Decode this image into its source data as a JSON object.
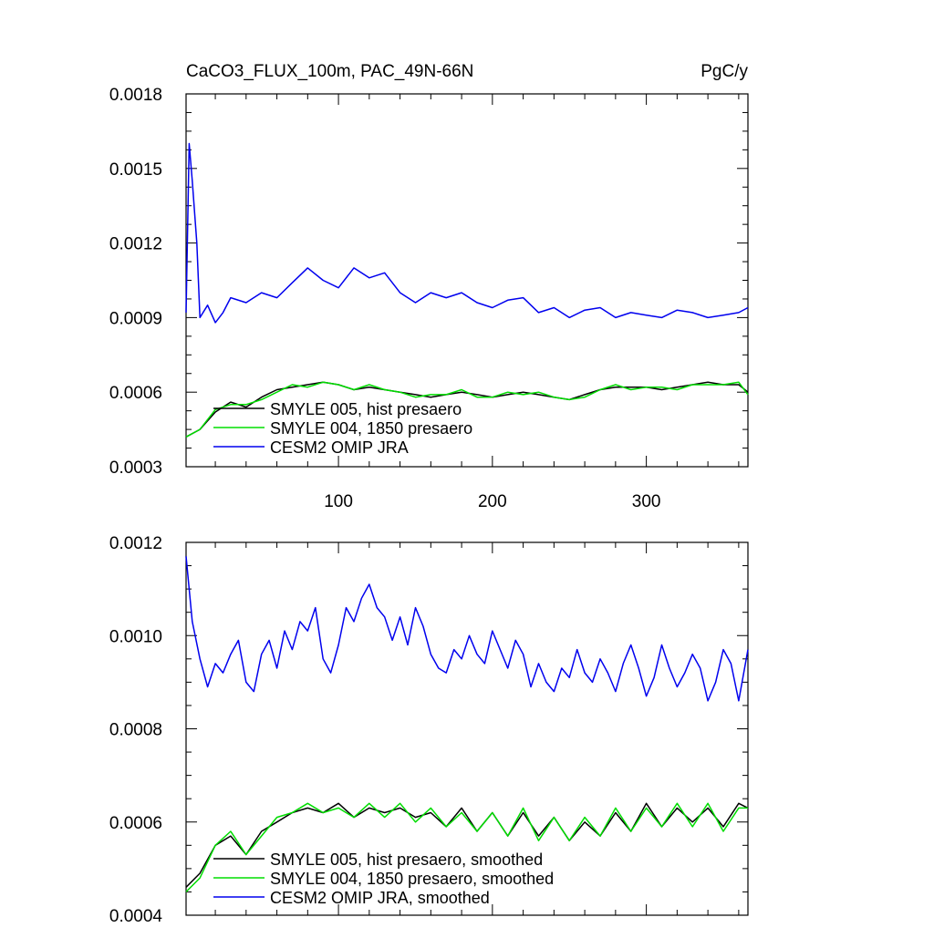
{
  "header": {
    "title": "CaCO3_FLUX_100m, PAC_49N-66N",
    "units": "PgC/y"
  },
  "colors": {
    "smyle005": "#000000",
    "smyle004": "#00dd00",
    "omip": "#0000ee"
  },
  "chart_data": [
    {
      "type": "line",
      "panel": "top",
      "xlim": [
        1,
        366
      ],
      "ylim": [
        0.0003,
        0.0018
      ],
      "x_ticks": [
        100,
        200,
        300
      ],
      "x_tick_labels": [
        "100",
        "200",
        "300"
      ],
      "y_ticks": [
        0.0003,
        0.0006,
        0.0009,
        0.0012,
        0.0015,
        0.0018
      ],
      "y_tick_labels": [
        "0.0003",
        "0.0006",
        "0.0009",
        "0.0012",
        "0.0015",
        "0.0018"
      ],
      "legend_position": "bottom-left",
      "series": [
        {
          "name": "SMYLE 005, hist presaero",
          "color_key": "smyle005",
          "x": [
            1,
            10,
            20,
            30,
            40,
            50,
            60,
            70,
            80,
            90,
            100,
            110,
            120,
            130,
            140,
            150,
            160,
            170,
            180,
            190,
            200,
            210,
            220,
            230,
            240,
            250,
            260,
            270,
            280,
            290,
            300,
            310,
            320,
            330,
            340,
            350,
            360,
            366
          ],
          "y": [
            0.00042,
            0.00045,
            0.00052,
            0.00056,
            0.00054,
            0.00058,
            0.00061,
            0.00062,
            0.00063,
            0.00064,
            0.00063,
            0.00061,
            0.00062,
            0.00061,
            0.0006,
            0.00059,
            0.00058,
            0.00059,
            0.0006,
            0.00059,
            0.00058,
            0.00059,
            0.0006,
            0.00059,
            0.00058,
            0.00057,
            0.00059,
            0.00061,
            0.00062,
            0.00062,
            0.00062,
            0.00061,
            0.00062,
            0.00063,
            0.00064,
            0.00063,
            0.00063,
            0.0006
          ]
        },
        {
          "name": "SMYLE 004, 1850 presaero",
          "color_key": "smyle004",
          "x": [
            1,
            10,
            20,
            30,
            40,
            50,
            60,
            70,
            80,
            90,
            100,
            110,
            120,
            130,
            140,
            150,
            160,
            170,
            180,
            190,
            200,
            210,
            220,
            230,
            240,
            250,
            260,
            270,
            280,
            290,
            300,
            310,
            320,
            330,
            340,
            350,
            360,
            366
          ],
          "y": [
            0.00042,
            0.00045,
            0.00053,
            0.00055,
            0.00055,
            0.00057,
            0.0006,
            0.00063,
            0.00062,
            0.00064,
            0.00063,
            0.00061,
            0.00063,
            0.00061,
            0.0006,
            0.00058,
            0.00059,
            0.00059,
            0.00061,
            0.00058,
            0.00058,
            0.0006,
            0.00059,
            0.0006,
            0.00058,
            0.00057,
            0.00058,
            0.00061,
            0.00063,
            0.00061,
            0.00062,
            0.00062,
            0.00061,
            0.00063,
            0.00063,
            0.00063,
            0.00064,
            0.00059
          ]
        },
        {
          "name": "CESM2 OMIP JRA",
          "color_key": "omip",
          "x": [
            1,
            3,
            5,
            8,
            10,
            15,
            20,
            25,
            30,
            40,
            50,
            60,
            70,
            80,
            90,
            100,
            110,
            120,
            130,
            140,
            150,
            160,
            170,
            180,
            190,
            200,
            210,
            220,
            230,
            240,
            250,
            260,
            270,
            280,
            290,
            300,
            310,
            320,
            330,
            340,
            350,
            360,
            366
          ],
          "y": [
            0.00092,
            0.0016,
            0.00145,
            0.0012,
            0.0009,
            0.00095,
            0.00088,
            0.00092,
            0.00098,
            0.00096,
            0.001,
            0.00098,
            0.00104,
            0.0011,
            0.00105,
            0.00102,
            0.0011,
            0.00106,
            0.00108,
            0.001,
            0.00096,
            0.001,
            0.00098,
            0.001,
            0.00096,
            0.00094,
            0.00097,
            0.00098,
            0.00092,
            0.00094,
            0.0009,
            0.00093,
            0.00094,
            0.0009,
            0.00092,
            0.00091,
            0.0009,
            0.00093,
            0.00092,
            0.0009,
            0.00091,
            0.00092,
            0.00094
          ]
        }
      ]
    },
    {
      "type": "line",
      "panel": "bottom",
      "xlim": [
        1,
        366
      ],
      "ylim": [
        0.0004,
        0.0012
      ],
      "x_ticks": [
        100,
        200,
        300
      ],
      "x_tick_labels": [],
      "y_ticks": [
        0.0004,
        0.0006,
        0.0008,
        0.001,
        0.0012
      ],
      "y_tick_labels": [
        "0.0004",
        "0.0006",
        "0.0008",
        "0.0010",
        "0.0012"
      ],
      "legend_position": "bottom-left",
      "series": [
        {
          "name": "SMYLE 005, hist presaero, smoothed",
          "color_key": "smyle005",
          "x": [
            1,
            10,
            20,
            30,
            40,
            50,
            60,
            70,
            80,
            90,
            100,
            110,
            120,
            130,
            140,
            150,
            160,
            170,
            180,
            190,
            200,
            210,
            220,
            230,
            240,
            250,
            260,
            270,
            280,
            290,
            300,
            310,
            320,
            330,
            340,
            350,
            360,
            366
          ],
          "y": [
            0.00046,
            0.00049,
            0.00055,
            0.00057,
            0.00053,
            0.00058,
            0.0006,
            0.00062,
            0.00063,
            0.00062,
            0.00064,
            0.00061,
            0.00063,
            0.00062,
            0.00063,
            0.00061,
            0.00062,
            0.00059,
            0.00063,
            0.00058,
            0.00062,
            0.00057,
            0.00062,
            0.00057,
            0.00061,
            0.00056,
            0.0006,
            0.00057,
            0.00062,
            0.00058,
            0.00064,
            0.00059,
            0.00063,
            0.0006,
            0.00063,
            0.00059,
            0.00064,
            0.00063
          ]
        },
        {
          "name": "SMYLE 004, 1850 presaero, smoothed",
          "color_key": "smyle004",
          "x": [
            1,
            10,
            20,
            30,
            40,
            50,
            60,
            70,
            80,
            90,
            100,
            110,
            120,
            130,
            140,
            150,
            160,
            170,
            180,
            190,
            200,
            210,
            220,
            230,
            240,
            250,
            260,
            270,
            280,
            290,
            300,
            310,
            320,
            330,
            340,
            350,
            360,
            366
          ],
          "y": [
            0.00045,
            0.00048,
            0.00055,
            0.00058,
            0.00053,
            0.00057,
            0.00061,
            0.00062,
            0.00064,
            0.00062,
            0.00063,
            0.00061,
            0.00064,
            0.00061,
            0.00064,
            0.0006,
            0.00063,
            0.00059,
            0.00062,
            0.00058,
            0.00062,
            0.00057,
            0.00063,
            0.00056,
            0.00061,
            0.00056,
            0.00061,
            0.00057,
            0.00063,
            0.00058,
            0.00063,
            0.00059,
            0.00064,
            0.00059,
            0.00064,
            0.00058,
            0.00063,
            0.00063
          ]
        },
        {
          "name": "CESM2 OMIP JRA, smoothed",
          "color_key": "omip",
          "x": [
            1,
            5,
            10,
            15,
            20,
            25,
            30,
            35,
            40,
            45,
            50,
            55,
            60,
            65,
            70,
            75,
            80,
            85,
            90,
            95,
            100,
            105,
            110,
            115,
            120,
            125,
            130,
            135,
            140,
            145,
            150,
            155,
            160,
            165,
            170,
            175,
            180,
            185,
            190,
            195,
            200,
            205,
            210,
            215,
            220,
            225,
            230,
            235,
            240,
            245,
            250,
            255,
            260,
            265,
            270,
            275,
            280,
            285,
            290,
            295,
            300,
            305,
            310,
            315,
            320,
            325,
            330,
            335,
            340,
            345,
            350,
            355,
            360,
            366
          ],
          "y": [
            0.00117,
            0.00103,
            0.00095,
            0.00089,
            0.00094,
            0.00092,
            0.00096,
            0.00099,
            0.0009,
            0.00088,
            0.00096,
            0.00099,
            0.00093,
            0.00101,
            0.00097,
            0.00103,
            0.00101,
            0.00106,
            0.00095,
            0.00092,
            0.00098,
            0.00106,
            0.00103,
            0.00108,
            0.00111,
            0.00106,
            0.00104,
            0.00099,
            0.00104,
            0.00098,
            0.00106,
            0.00102,
            0.00096,
            0.00093,
            0.00092,
            0.00097,
            0.00095,
            0.001,
            0.00096,
            0.00094,
            0.00101,
            0.00097,
            0.00093,
            0.00099,
            0.00096,
            0.00089,
            0.00094,
            0.0009,
            0.00088,
            0.00093,
            0.00091,
            0.00097,
            0.00092,
            0.0009,
            0.00095,
            0.00092,
            0.00088,
            0.00094,
            0.00098,
            0.00093,
            0.00087,
            0.00091,
            0.00098,
            0.00093,
            0.00089,
            0.00092,
            0.00096,
            0.00093,
            0.00086,
            0.0009,
            0.00097,
            0.00094,
            0.00086,
            0.00097
          ]
        }
      ]
    }
  ]
}
